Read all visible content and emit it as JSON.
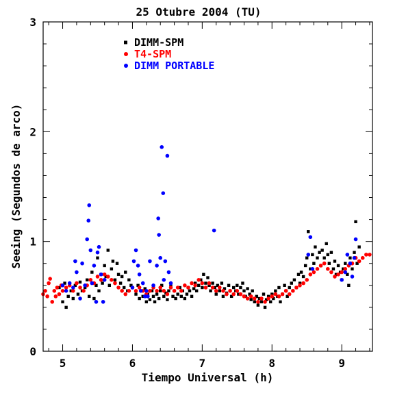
{
  "chart_data": {
    "type": "scatter",
    "title": "25 Otubre 2004 (TU)",
    "xlabel": "Tiempo Universal (h)",
    "ylabel": "Seeing (Segundos de arco)",
    "xlim": [
      4.72,
      9.44
    ],
    "ylim": [
      0,
      3
    ],
    "xticks": [
      5,
      6,
      7,
      8,
      9
    ],
    "yticks": [
      0,
      1,
      2,
      3
    ],
    "grid": false,
    "legend_position": "top-left",
    "series": [
      {
        "name": "DIMM-SPM",
        "color": "#000000",
        "marker": "square",
        "points": [
          [
            4.95,
            0.58
          ],
          [
            5.0,
            0.45
          ],
          [
            5.03,
            0.62
          ],
          [
            5.05,
            0.4
          ],
          [
            5.08,
            0.5
          ],
          [
            5.12,
            0.55
          ],
          [
            5.15,
            0.48
          ],
          [
            5.18,
            0.6
          ],
          [
            5.22,
            0.52
          ],
          [
            5.25,
            0.63
          ],
          [
            5.28,
            0.55
          ],
          [
            5.32,
            0.58
          ],
          [
            5.35,
            0.65
          ],
          [
            5.38,
            0.5
          ],
          [
            5.42,
            0.72
          ],
          [
            5.45,
            0.48
          ],
          [
            5.48,
            0.6
          ],
          [
            5.5,
            0.85
          ],
          [
            5.52,
            0.55
          ],
          [
            5.55,
            0.7
          ],
          [
            5.57,
            0.62
          ],
          [
            5.6,
            0.78
          ],
          [
            5.62,
            0.68
          ],
          [
            5.65,
            0.92
          ],
          [
            5.67,
            0.6
          ],
          [
            5.7,
            0.75
          ],
          [
            5.72,
            0.82
          ],
          [
            5.75,
            0.65
          ],
          [
            5.78,
            0.8
          ],
          [
            5.8,
            0.7
          ],
          [
            5.83,
            0.62
          ],
          [
            5.85,
            0.68
          ],
          [
            5.88,
            0.58
          ],
          [
            5.9,
            0.72
          ],
          [
            5.93,
            0.55
          ],
          [
            5.95,
            0.65
          ],
          [
            5.98,
            0.6
          ],
          [
            6.0,
            0.58
          ],
          [
            6.05,
            0.52
          ],
          [
            6.08,
            0.6
          ],
          [
            6.1,
            0.48
          ],
          [
            6.12,
            0.55
          ],
          [
            6.15,
            0.5
          ],
          [
            6.18,
            0.57
          ],
          [
            6.2,
            0.45
          ],
          [
            6.22,
            0.52
          ],
          [
            6.25,
            0.47
          ],
          [
            6.28,
            0.55
          ],
          [
            6.3,
            0.5
          ],
          [
            6.32,
            0.45
          ],
          [
            6.35,
            0.52
          ],
          [
            6.38,
            0.48
          ],
          [
            6.4,
            0.55
          ],
          [
            6.42,
            0.6
          ],
          [
            6.45,
            0.5
          ],
          [
            6.48,
            0.53
          ],
          [
            6.5,
            0.47
          ],
          [
            6.52,
            0.55
          ],
          [
            6.55,
            0.6
          ],
          [
            6.58,
            0.5
          ],
          [
            6.6,
            0.55
          ],
          [
            6.62,
            0.48
          ],
          [
            6.65,
            0.52
          ],
          [
            6.68,
            0.58
          ],
          [
            6.7,
            0.5
          ],
          [
            6.72,
            0.55
          ],
          [
            6.75,
            0.48
          ],
          [
            6.78,
            0.52
          ],
          [
            6.8,
            0.58
          ],
          [
            6.82,
            0.55
          ],
          [
            6.85,
            0.5
          ],
          [
            6.88,
            0.57
          ],
          [
            6.9,
            0.62
          ],
          [
            6.92,
            0.55
          ],
          [
            6.95,
            0.6
          ],
          [
            6.98,
            0.65
          ],
          [
            7.0,
            0.58
          ],
          [
            7.02,
            0.7
          ],
          [
            7.05,
            0.62
          ],
          [
            7.08,
            0.67
          ],
          [
            7.1,
            0.6
          ],
          [
            7.12,
            0.55
          ],
          [
            7.15,
            0.62
          ],
          [
            7.18,
            0.58
          ],
          [
            7.2,
            0.52
          ],
          [
            7.22,
            0.6
          ],
          [
            7.25,
            0.55
          ],
          [
            7.28,
            0.62
          ],
          [
            7.3,
            0.5
          ],
          [
            7.32,
            0.57
          ],
          [
            7.35,
            0.53
          ],
          [
            7.38,
            0.6
          ],
          [
            7.4,
            0.55
          ],
          [
            7.42,
            0.5
          ],
          [
            7.45,
            0.58
          ],
          [
            7.48,
            0.55
          ],
          [
            7.5,
            0.6
          ],
          [
            7.52,
            0.52
          ],
          [
            7.55,
            0.58
          ],
          [
            7.58,
            0.62
          ],
          [
            7.6,
            0.55
          ],
          [
            7.62,
            0.5
          ],
          [
            7.65,
            0.57
          ],
          [
            7.68,
            0.52
          ],
          [
            7.7,
            0.47
          ],
          [
            7.72,
            0.55
          ],
          [
            7.75,
            0.45
          ],
          [
            7.78,
            0.5
          ],
          [
            7.8,
            0.42
          ],
          [
            7.82,
            0.48
          ],
          [
            7.85,
            0.45
          ],
          [
            7.88,
            0.52
          ],
          [
            7.9,
            0.4
          ],
          [
            7.92,
            0.47
          ],
          [
            7.95,
            0.5
          ],
          [
            7.98,
            0.45
          ],
          [
            8.0,
            0.52
          ],
          [
            8.02,
            0.48
          ],
          [
            8.05,
            0.55
          ],
          [
            8.08,
            0.5
          ],
          [
            8.1,
            0.58
          ],
          [
            8.12,
            0.45
          ],
          [
            8.15,
            0.52
          ],
          [
            8.18,
            0.6
          ],
          [
            8.2,
            0.55
          ],
          [
            8.22,
            0.5
          ],
          [
            8.25,
            0.58
          ],
          [
            8.28,
            0.62
          ],
          [
            8.3,
            0.55
          ],
          [
            8.32,
            0.65
          ],
          [
            8.35,
            0.58
          ],
          [
            8.38,
            0.7
          ],
          [
            8.4,
            0.62
          ],
          [
            8.42,
            0.72
          ],
          [
            8.45,
            0.68
          ],
          [
            8.48,
            0.78
          ],
          [
            8.5,
            0.85
          ],
          [
            8.52,
            1.09
          ],
          [
            8.55,
            0.75
          ],
          [
            8.58,
            0.88
          ],
          [
            8.6,
            0.8
          ],
          [
            8.62,
            0.95
          ],
          [
            8.65,
            0.85
          ],
          [
            8.68,
            0.9
          ],
          [
            8.7,
            0.78
          ],
          [
            8.72,
            0.92
          ],
          [
            8.75,
            0.85
          ],
          [
            8.78,
            0.98
          ],
          [
            8.8,
            0.88
          ],
          [
            8.82,
            0.8
          ],
          [
            8.85,
            0.9
          ],
          [
            8.88,
            0.75
          ],
          [
            8.9,
            0.82
          ],
          [
            8.92,
            0.7
          ],
          [
            8.95,
            0.78
          ],
          [
            8.98,
            0.72
          ],
          [
            9.0,
            0.65
          ],
          [
            9.02,
            0.75
          ],
          [
            9.05,
            0.8
          ],
          [
            9.08,
            0.7
          ],
          [
            9.1,
            0.6
          ],
          [
            9.12,
            0.85
          ],
          [
            9.15,
            0.75
          ],
          [
            9.18,
            0.9
          ],
          [
            9.2,
            1.18
          ],
          [
            9.22,
            0.8
          ],
          [
            9.25,
            0.95
          ]
        ]
      },
      {
        "name": "T4-SPM",
        "color": "#ff0000",
        "marker": "circle",
        "points": [
          [
            4.72,
            0.52
          ],
          [
            4.75,
            0.55
          ],
          [
            4.78,
            0.5
          ],
          [
            4.8,
            0.62
          ],
          [
            4.82,
            0.66
          ],
          [
            4.85,
            0.45
          ],
          [
            4.88,
            0.55
          ],
          [
            4.9,
            0.5
          ],
          [
            4.92,
            0.58
          ],
          [
            4.95,
            0.52
          ],
          [
            4.98,
            0.6
          ],
          [
            5.0,
            0.55
          ],
          [
            5.05,
            0.58
          ],
          [
            5.1,
            0.6
          ],
          [
            5.15,
            0.55
          ],
          [
            5.2,
            0.62
          ],
          [
            5.25,
            0.58
          ],
          [
            5.3,
            0.55
          ],
          [
            5.35,
            0.6
          ],
          [
            5.4,
            0.65
          ],
          [
            5.45,
            0.62
          ],
          [
            5.5,
            0.68
          ],
          [
            5.55,
            0.65
          ],
          [
            5.6,
            0.7
          ],
          [
            5.65,
            0.68
          ],
          [
            5.7,
            0.65
          ],
          [
            5.75,
            0.62
          ],
          [
            5.8,
            0.58
          ],
          [
            5.85,
            0.55
          ],
          [
            5.9,
            0.52
          ],
          [
            5.95,
            0.55
          ],
          [
            6.0,
            0.58
          ],
          [
            6.05,
            0.55
          ],
          [
            6.1,
            0.58
          ],
          [
            6.15,
            0.55
          ],
          [
            6.2,
            0.52
          ],
          [
            6.25,
            0.55
          ],
          [
            6.3,
            0.58
          ],
          [
            6.35,
            0.55
          ],
          [
            6.4,
            0.58
          ],
          [
            6.45,
            0.55
          ],
          [
            6.5,
            0.52
          ],
          [
            6.55,
            0.58
          ],
          [
            6.6,
            0.55
          ],
          [
            6.65,
            0.58
          ],
          [
            6.7,
            0.55
          ],
          [
            6.75,
            0.6
          ],
          [
            6.8,
            0.58
          ],
          [
            6.85,
            0.62
          ],
          [
            6.9,
            0.6
          ],
          [
            6.95,
            0.65
          ],
          [
            7.0,
            0.62
          ],
          [
            7.05,
            0.58
          ],
          [
            7.1,
            0.62
          ],
          [
            7.15,
            0.58
          ],
          [
            7.2,
            0.55
          ],
          [
            7.25,
            0.58
          ],
          [
            7.3,
            0.55
          ],
          [
            7.35,
            0.52
          ],
          [
            7.4,
            0.55
          ],
          [
            7.45,
            0.52
          ],
          [
            7.5,
            0.55
          ],
          [
            7.55,
            0.52
          ],
          [
            7.6,
            0.5
          ],
          [
            7.65,
            0.48
          ],
          [
            7.7,
            0.5
          ],
          [
            7.75,
            0.48
          ],
          [
            7.8,
            0.45
          ],
          [
            7.85,
            0.48
          ],
          [
            7.9,
            0.45
          ],
          [
            7.95,
            0.48
          ],
          [
            8.0,
            0.5
          ],
          [
            8.05,
            0.52
          ],
          [
            8.1,
            0.5
          ],
          [
            8.15,
            0.52
          ],
          [
            8.2,
            0.55
          ],
          [
            8.25,
            0.52
          ],
          [
            8.3,
            0.55
          ],
          [
            8.35,
            0.58
          ],
          [
            8.4,
            0.6
          ],
          [
            8.45,
            0.62
          ],
          [
            8.5,
            0.65
          ],
          [
            8.55,
            0.7
          ],
          [
            8.6,
            0.72
          ],
          [
            8.65,
            0.75
          ],
          [
            8.7,
            0.78
          ],
          [
            8.75,
            0.8
          ],
          [
            8.8,
            0.75
          ],
          [
            8.85,
            0.72
          ],
          [
            8.9,
            0.68
          ],
          [
            8.95,
            0.7
          ],
          [
            9.0,
            0.72
          ],
          [
            9.05,
            0.75
          ],
          [
            9.1,
            0.78
          ],
          [
            9.15,
            0.8
          ],
          [
            9.2,
            0.85
          ],
          [
            9.25,
            0.82
          ],
          [
            9.3,
            0.85
          ],
          [
            9.35,
            0.88
          ],
          [
            9.4,
            0.88
          ]
        ]
      },
      {
        "name": "DIMM PORTABLE",
        "color": "#0000ff",
        "marker": "circle",
        "points": [
          [
            5.0,
            0.6
          ],
          [
            5.05,
            0.55
          ],
          [
            5.1,
            0.62
          ],
          [
            5.15,
            0.58
          ],
          [
            5.18,
            0.82
          ],
          [
            5.2,
            0.72
          ],
          [
            5.25,
            0.48
          ],
          [
            5.28,
            0.8
          ],
          [
            5.32,
            0.6
          ],
          [
            5.35,
            1.02
          ],
          [
            5.37,
            1.19
          ],
          [
            5.38,
            1.33
          ],
          [
            5.4,
            0.92
          ],
          [
            5.42,
            0.62
          ],
          [
            5.45,
            0.78
          ],
          [
            5.48,
            0.45
          ],
          [
            5.5,
            0.9
          ],
          [
            5.52,
            0.95
          ],
          [
            5.55,
            0.7
          ],
          [
            5.58,
            0.45
          ],
          [
            5.6,
            0.65
          ],
          [
            6.0,
            0.58
          ],
          [
            6.02,
            0.82
          ],
          [
            6.05,
            0.92
          ],
          [
            6.08,
            0.78
          ],
          [
            6.1,
            0.7
          ],
          [
            6.12,
            0.55
          ],
          [
            6.15,
            0.62
          ],
          [
            6.18,
            0.5
          ],
          [
            6.2,
            0.55
          ],
          [
            6.22,
            0.5
          ],
          [
            6.25,
            0.82
          ],
          [
            6.3,
            0.6
          ],
          [
            6.35,
            0.78
          ],
          [
            6.37,
            1.21
          ],
          [
            6.38,
            1.06
          ],
          [
            6.4,
            0.85
          ],
          [
            6.42,
            1.86
          ],
          [
            6.44,
            1.44
          ],
          [
            6.45,
            0.65
          ],
          [
            6.47,
            0.82
          ],
          [
            6.5,
            1.78
          ],
          [
            6.52,
            0.72
          ],
          [
            6.55,
            0.62
          ],
          [
            7.17,
            1.1
          ],
          [
            8.52,
            0.88
          ],
          [
            8.55,
            1.04
          ],
          [
            8.58,
            0.75
          ],
          [
            9.0,
            0.65
          ],
          [
            9.05,
            0.72
          ],
          [
            9.08,
            0.88
          ],
          [
            9.12,
            0.8
          ],
          [
            9.15,
            0.68
          ],
          [
            9.18,
            0.85
          ],
          [
            9.2,
            1.02
          ]
        ]
      }
    ]
  }
}
